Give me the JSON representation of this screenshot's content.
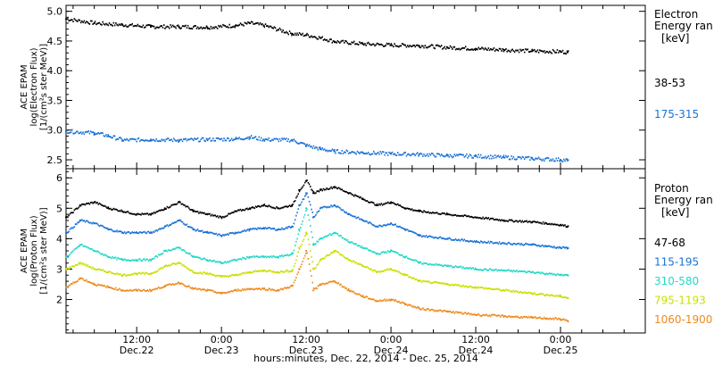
{
  "xaxis": {
    "ticks": [
      {
        "t": 12,
        "time": "12:00",
        "date": "Dec.22"
      },
      {
        "t": 24,
        "time": "0:00",
        "date": "Dec.23"
      },
      {
        "t": 36,
        "time": "12:00",
        "date": "Dec.23"
      },
      {
        "t": 48,
        "time": "0:00",
        "date": "Dec.24"
      },
      {
        "t": 60,
        "time": "12:00",
        "date": "Dec.24"
      },
      {
        "t": 72,
        "time": "0:00",
        "date": "Dec.25"
      }
    ],
    "label": "hours:minutes, Dec. 22, 2014 - Dec. 25, 2014",
    "range_hours": [
      2,
      84
    ]
  },
  "chart_data": [
    {
      "type": "scatter",
      "ylabel_lines": [
        "ACE EPAM",
        "log(Electron Flux)",
        "[1/(cm²s ster MeV)]"
      ],
      "ylim": [
        2.35,
        5.1
      ],
      "yticks": [
        2.5,
        3.0,
        3.5,
        4.0,
        4.5,
        5.0
      ],
      "ytick_labels": [
        "2.5",
        "3.0",
        "3.5",
        "4.0",
        "4.5",
        "5.0"
      ],
      "legend": {
        "title_lines": [
          "Electron",
          "Energy ran"
        ],
        "unit": "[keV]"
      },
      "x_unit": "hours since Dec. 22, 2014 00:00",
      "series": [
        {
          "name": "38-53",
          "color": "#000000",
          "x": [
            2,
            6,
            10,
            14,
            18,
            22,
            26,
            28,
            30,
            34,
            36,
            38,
            40,
            44,
            48,
            52,
            56,
            60,
            64,
            68,
            72,
            73
          ],
          "y": [
            4.87,
            4.8,
            4.77,
            4.74,
            4.74,
            4.73,
            4.76,
            4.8,
            4.76,
            4.62,
            4.6,
            4.55,
            4.49,
            4.45,
            4.43,
            4.42,
            4.39,
            4.37,
            4.35,
            4.33,
            4.32,
            4.31
          ]
        },
        {
          "name": "175-315",
          "color": "#1a72d6",
          "x": [
            2,
            6,
            8,
            10,
            14,
            18,
            22,
            26,
            28,
            30,
            34,
            36,
            38,
            40,
            44,
            48,
            52,
            56,
            60,
            64,
            68,
            72,
            73
          ],
          "y": [
            2.98,
            2.95,
            2.9,
            2.83,
            2.84,
            2.83,
            2.84,
            2.85,
            2.88,
            2.84,
            2.83,
            2.74,
            2.68,
            2.64,
            2.62,
            2.6,
            2.59,
            2.57,
            2.56,
            2.54,
            2.52,
            2.5,
            2.49
          ]
        }
      ]
    },
    {
      "type": "scatter",
      "ylabel_lines": [
        "ACE EPAM",
        "log(Proton Flux)",
        "[1/(cm²s ster MeV)]"
      ],
      "ylim": [
        0.9,
        6.3
      ],
      "yticks": [
        2,
        3,
        4,
        5,
        6
      ],
      "ytick_labels": [
        "2",
        "3",
        "4",
        "5",
        "6"
      ],
      "legend": {
        "title_lines": [
          "Proton",
          "Energy ran"
        ],
        "unit": "[keV]"
      },
      "x_unit": "hours since Dec. 22, 2014 00:00",
      "series": [
        {
          "name": "47-68",
          "color": "#000000",
          "x": [
            2,
            4,
            6,
            8,
            10,
            12,
            14,
            16,
            18,
            20,
            22,
            24,
            26,
            28,
            30,
            32,
            34,
            35,
            36,
            37,
            38,
            40,
            42,
            44,
            46,
            48,
            50,
            52,
            56,
            60,
            64,
            68,
            70,
            72,
            73
          ],
          "y": [
            4.7,
            5.1,
            5.2,
            5.0,
            4.9,
            4.8,
            4.8,
            5.0,
            5.2,
            4.9,
            4.8,
            4.7,
            4.9,
            5.0,
            5.1,
            5.0,
            5.1,
            5.6,
            5.9,
            5.5,
            5.6,
            5.7,
            5.5,
            5.3,
            5.1,
            5.2,
            5.0,
            4.9,
            4.8,
            4.7,
            4.6,
            4.55,
            4.5,
            4.45,
            4.4
          ]
        },
        {
          "name": "115-195",
          "color": "#1a72d6",
          "x": [
            2,
            4,
            6,
            8,
            10,
            12,
            14,
            16,
            18,
            20,
            22,
            24,
            26,
            28,
            30,
            32,
            34,
            35,
            36,
            37,
            38,
            40,
            42,
            44,
            46,
            48,
            50,
            52,
            56,
            60,
            64,
            68,
            70,
            72,
            73
          ],
          "y": [
            4.2,
            4.6,
            4.5,
            4.3,
            4.2,
            4.2,
            4.2,
            4.4,
            4.6,
            4.3,
            4.2,
            4.1,
            4.2,
            4.3,
            4.35,
            4.3,
            4.4,
            5.1,
            5.5,
            4.7,
            5.0,
            5.1,
            4.8,
            4.6,
            4.4,
            4.5,
            4.3,
            4.1,
            4.0,
            3.9,
            3.85,
            3.8,
            3.75,
            3.7,
            3.7
          ]
        },
        {
          "name": "310-580",
          "color": "#22d8c8",
          "x": [
            2,
            4,
            6,
            8,
            10,
            12,
            14,
            16,
            18,
            20,
            22,
            24,
            26,
            28,
            30,
            32,
            34,
            35,
            36,
            37,
            38,
            40,
            42,
            44,
            46,
            48,
            50,
            52,
            56,
            60,
            64,
            68,
            70,
            72,
            73
          ],
          "y": [
            3.4,
            3.8,
            3.6,
            3.4,
            3.3,
            3.3,
            3.3,
            3.6,
            3.7,
            3.4,
            3.3,
            3.2,
            3.3,
            3.4,
            3.4,
            3.4,
            3.5,
            4.3,
            5.0,
            3.8,
            4.0,
            4.2,
            3.9,
            3.7,
            3.5,
            3.6,
            3.4,
            3.2,
            3.1,
            3.0,
            2.95,
            2.9,
            2.85,
            2.8,
            2.8
          ]
        },
        {
          "name": "795-1193",
          "color": "#c8e000",
          "x": [
            2,
            4,
            6,
            8,
            10,
            12,
            14,
            16,
            18,
            20,
            22,
            24,
            26,
            28,
            30,
            32,
            34,
            35,
            36,
            37,
            38,
            40,
            42,
            44,
            46,
            48,
            50,
            52,
            56,
            60,
            64,
            68,
            70,
            72,
            73
          ],
          "y": [
            3.0,
            3.2,
            3.0,
            2.9,
            2.8,
            2.85,
            2.85,
            3.1,
            3.2,
            2.9,
            2.85,
            2.75,
            2.8,
            2.9,
            2.95,
            2.9,
            2.95,
            3.7,
            4.2,
            3.0,
            3.3,
            3.6,
            3.3,
            3.1,
            2.9,
            3.0,
            2.8,
            2.6,
            2.5,
            2.4,
            2.3,
            2.2,
            2.15,
            2.1,
            2.05
          ]
        },
        {
          "name": "1060-1900",
          "color": "#ee8a1c",
          "x": [
            2,
            4,
            6,
            8,
            10,
            12,
            14,
            16,
            18,
            20,
            22,
            24,
            26,
            28,
            30,
            32,
            34,
            35,
            36,
            37,
            38,
            40,
            42,
            44,
            46,
            48,
            50,
            52,
            56,
            60,
            64,
            68,
            70,
            72,
            73
          ],
          "y": [
            2.4,
            2.7,
            2.5,
            2.4,
            2.3,
            2.3,
            2.3,
            2.45,
            2.55,
            2.35,
            2.3,
            2.2,
            2.3,
            2.35,
            2.35,
            2.3,
            2.45,
            3.0,
            3.6,
            2.3,
            2.5,
            2.6,
            2.3,
            2.1,
            1.95,
            2.0,
            1.85,
            1.7,
            1.6,
            1.5,
            1.45,
            1.4,
            1.38,
            1.35,
            1.3
          ]
        }
      ]
    }
  ]
}
